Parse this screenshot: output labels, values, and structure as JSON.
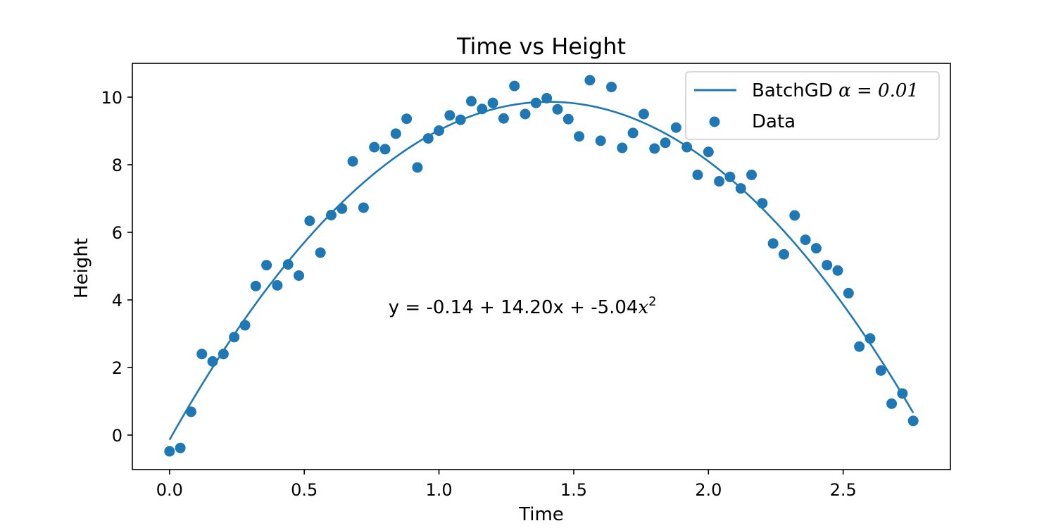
{
  "chart_data": {
    "type": "scatter",
    "title": "Time vs Height",
    "xlabel": "Time",
    "ylabel": "Height",
    "xlim": [
      -0.138,
      2.898
    ],
    "ylim": [
      -1.02,
      11.0
    ],
    "xticks": [
      0.0,
      0.5,
      1.0,
      1.5,
      2.0,
      2.5
    ],
    "xtick_labels": [
      "0.0",
      "0.5",
      "1.0",
      "1.5",
      "2.0",
      "2.5"
    ],
    "yticks": [
      0,
      2,
      4,
      6,
      8,
      10
    ],
    "ytick_labels": [
      "0",
      "2",
      "4",
      "6",
      "8",
      "10"
    ],
    "grid": false,
    "legend_position": "top-right",
    "annotation": {
      "prefix": "y = -0.14 + 14.20x + -5.04",
      "var": "x",
      "sup": "2",
      "x": 1.31,
      "y": 3.6
    },
    "series": [
      {
        "name": "BatchGD α = 0.01",
        "legend_plain": "BatchGD ",
        "legend_math": "α = 0.01",
        "kind": "line",
        "color": "#1f77b4",
        "coefficients": [
          -0.14,
          14.2,
          -5.04
        ],
        "x_range": [
          0.0,
          2.76
        ]
      },
      {
        "name": "Data",
        "kind": "scatter",
        "color": "#1f77b4",
        "x": [
          0.0,
          0.04,
          0.08,
          0.12,
          0.16,
          0.2,
          0.24,
          0.28,
          0.32,
          0.36,
          0.4,
          0.44,
          0.48,
          0.52,
          0.56,
          0.6,
          0.64,
          0.68,
          0.72,
          0.76,
          0.8,
          0.84,
          0.88,
          0.92,
          0.96,
          1.0,
          1.04,
          1.08,
          1.12,
          1.16,
          1.2,
          1.24,
          1.28,
          1.32,
          1.36,
          1.4,
          1.44,
          1.48,
          1.52,
          1.56,
          1.6,
          1.64,
          1.68,
          1.72,
          1.76,
          1.8,
          1.84,
          1.88,
          1.92,
          1.96,
          2.0,
          2.04,
          2.08,
          2.12,
          2.16,
          2.2,
          2.24,
          2.28,
          2.32,
          2.36,
          2.4,
          2.44,
          2.48,
          2.52,
          2.56,
          2.6,
          2.64,
          2.68,
          2.72,
          2.76
        ],
        "y": [
          -0.48,
          -0.38,
          0.69,
          2.4,
          2.18,
          2.4,
          2.9,
          3.25,
          4.41,
          5.03,
          4.43,
          5.05,
          4.72,
          6.34,
          5.4,
          6.51,
          6.7,
          8.1,
          6.73,
          8.52,
          8.46,
          8.92,
          9.36,
          7.92,
          8.78,
          9.01,
          9.46,
          9.33,
          9.88,
          9.65,
          9.83,
          9.37,
          10.33,
          9.5,
          9.83,
          9.97,
          9.64,
          9.35,
          8.84,
          10.5,
          8.71,
          10.3,
          8.5,
          8.94,
          9.5,
          8.48,
          8.65,
          9.1,
          8.52,
          7.7,
          8.38,
          7.51,
          7.64,
          7.3,
          7.7,
          6.86,
          5.67,
          5.35,
          6.5,
          5.78,
          5.53,
          5.03,
          4.87,
          4.2,
          2.62,
          2.86,
          1.91,
          0.93,
          1.23,
          0.42
        ]
      }
    ]
  }
}
